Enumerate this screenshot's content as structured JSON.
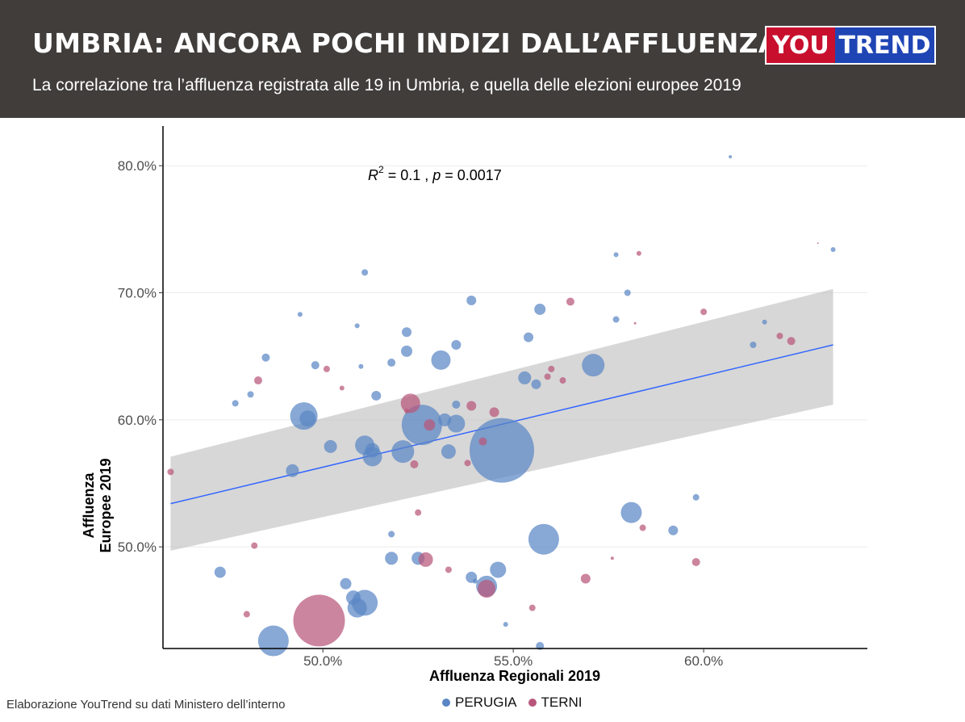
{
  "header": {
    "title": "UMBRIA: ANCORA POCHI INDIZI DALL’AFFLUENZA",
    "subtitle": "La correlazione tra l’affluenza registrata alle 19 in Umbria, e quella delle elezioni europee 2019",
    "logo_left": "YOU",
    "logo_right": "TREND"
  },
  "footer": {
    "source": "Elaborazione YouTrend su dati Ministero dell’interno"
  },
  "colors": {
    "perugia": "#5a86c5",
    "terni": "#b8567a",
    "fit": "#3366ff",
    "band": "#bdbdbd",
    "header_bg": "#403d3b"
  },
  "chart_data": {
    "type": "scatter",
    "annotation": {
      "r2_label": "R",
      "r2_sup": "2",
      "r2_rest": " = 0.1 , ",
      "p_label": "p",
      "p_rest": " = 0.0017"
    },
    "xlabel": "Affluenza Regionali 2019",
    "ylabel_line1": "Affluenza",
    "ylabel_line2": "Europee 2019",
    "xlim": [
      45.8,
      64.3
    ],
    "ylim": [
      42.0,
      83.0
    ],
    "x_ticks": [
      50,
      55,
      60
    ],
    "x_tick_labels": [
      "50.0%",
      "55.0%",
      "60.0%"
    ],
    "y_ticks": [
      50,
      60,
      70,
      80
    ],
    "y_tick_labels": [
      "50.0%",
      "60.0%",
      "70.0%",
      "80.0%"
    ],
    "legend": [
      {
        "name": "PERUGIA",
        "color": "#5a86c5"
      },
      {
        "name": "TERNI",
        "color": "#b8567a"
      }
    ],
    "fit": {
      "x": [
        46.0,
        63.4
      ],
      "y": [
        53.4,
        65.9
      ],
      "lower": [
        49.7,
        61.2
      ],
      "upper": [
        57.1,
        70.3
      ]
    },
    "series": [
      {
        "name": "PERUGIA",
        "color": "#5a86c5",
        "points": [
          [
            54.7,
            57.6,
            40
          ],
          [
            52.6,
            59.6,
            25
          ],
          [
            55.8,
            50.6,
            19
          ],
          [
            48.7,
            42.6,
            19
          ],
          [
            49.5,
            60.3,
            17
          ],
          [
            51.1,
            45.6,
            16
          ],
          [
            57.1,
            64.3,
            14
          ],
          [
            54.3,
            46.9,
            13
          ],
          [
            52.1,
            57.5,
            14
          ],
          [
            53.1,
            64.7,
            12
          ],
          [
            51.1,
            58.0,
            12
          ],
          [
            50.9,
            45.2,
            12
          ],
          [
            58.1,
            52.7,
            13
          ],
          [
            51.3,
            57.1,
            12
          ],
          [
            53.5,
            59.7,
            11
          ],
          [
            49.6,
            60.1,
            10
          ],
          [
            50.8,
            46.0,
            9
          ],
          [
            54.6,
            48.2,
            10
          ],
          [
            53.3,
            57.5,
            9
          ],
          [
            51.3,
            57.6,
            9
          ],
          [
            53.2,
            60.0,
            8
          ],
          [
            49.2,
            56.0,
            8
          ],
          [
            50.2,
            57.9,
            8
          ],
          [
            55.3,
            63.3,
            8
          ],
          [
            52.5,
            49.1,
            8
          ],
          [
            51.8,
            49.1,
            8
          ],
          [
            47.3,
            48.0,
            7
          ],
          [
            50.6,
            47.1,
            7
          ],
          [
            53.9,
            47.6,
            7
          ],
          [
            55.7,
            68.7,
            7
          ],
          [
            52.2,
            65.4,
            7
          ],
          [
            53.9,
            69.4,
            6
          ],
          [
            53.5,
            65.9,
            6
          ],
          [
            52.2,
            66.9,
            6
          ],
          [
            55.4,
            66.5,
            6
          ],
          [
            55.6,
            62.8,
            6
          ],
          [
            59.2,
            51.3,
            6
          ],
          [
            51.4,
            61.9,
            6
          ],
          [
            53.5,
            61.2,
            5
          ],
          [
            51.8,
            64.5,
            5
          ],
          [
            48.5,
            64.9,
            5
          ],
          [
            49.8,
            64.3,
            5
          ],
          [
            55.7,
            42.2,
            5
          ],
          [
            51.1,
            71.6,
            4
          ],
          [
            58.0,
            70.0,
            4
          ],
          [
            57.7,
            67.9,
            4
          ],
          [
            61.3,
            65.9,
            4
          ],
          [
            47.7,
            61.3,
            4
          ],
          [
            48.1,
            62.0,
            4
          ],
          [
            51.8,
            51.0,
            4
          ],
          [
            59.8,
            53.9,
            4
          ],
          [
            49.4,
            68.3,
            3
          ],
          [
            57.7,
            73.0,
            3
          ],
          [
            61.6,
            67.7,
            3
          ],
          [
            63.4,
            73.4,
            3
          ],
          [
            51.0,
            64.2,
            3
          ],
          [
            50.9,
            67.4,
            3
          ],
          [
            54.0,
            47.3,
            3
          ],
          [
            54.8,
            43.9,
            3
          ],
          [
            60.7,
            80.7,
            2
          ]
        ]
      },
      {
        "name": "TERNI",
        "color": "#b8567a",
        "points": [
          [
            49.9,
            44.2,
            32
          ],
          [
            52.3,
            61.3,
            12
          ],
          [
            54.3,
            46.7,
            11
          ],
          [
            52.7,
            49.0,
            9
          ],
          [
            52.8,
            59.6,
            7
          ],
          [
            54.5,
            60.6,
            6
          ],
          [
            53.9,
            61.1,
            6
          ],
          [
            56.9,
            47.5,
            6
          ],
          [
            54.2,
            58.3,
            5
          ],
          [
            56.5,
            69.3,
            5
          ],
          [
            62.3,
            66.2,
            5
          ],
          [
            48.3,
            63.1,
            5
          ],
          [
            59.8,
            48.8,
            5
          ],
          [
            52.5,
            52.7,
            4
          ],
          [
            46.0,
            55.9,
            4
          ],
          [
            48.2,
            50.1,
            4
          ],
          [
            52.4,
            56.5,
            5
          ],
          [
            62.0,
            66.6,
            4
          ],
          [
            60.0,
            68.5,
            4
          ],
          [
            58.4,
            51.5,
            4
          ],
          [
            50.1,
            64.0,
            4
          ],
          [
            56.0,
            64.0,
            4
          ],
          [
            56.3,
            63.1,
            4
          ],
          [
            55.9,
            63.4,
            4
          ],
          [
            48.0,
            44.7,
            4
          ],
          [
            55.5,
            45.2,
            4
          ],
          [
            53.3,
            48.2,
            4
          ],
          [
            53.8,
            56.6,
            4
          ],
          [
            58.3,
            73.1,
            3
          ],
          [
            50.5,
            62.5,
            3
          ],
          [
            52.2,
            60.7,
            3
          ],
          [
            57.6,
            49.1,
            2
          ],
          [
            58.2,
            67.6,
            1.5
          ],
          [
            63.0,
            73.9,
            1
          ]
        ]
      }
    ]
  }
}
